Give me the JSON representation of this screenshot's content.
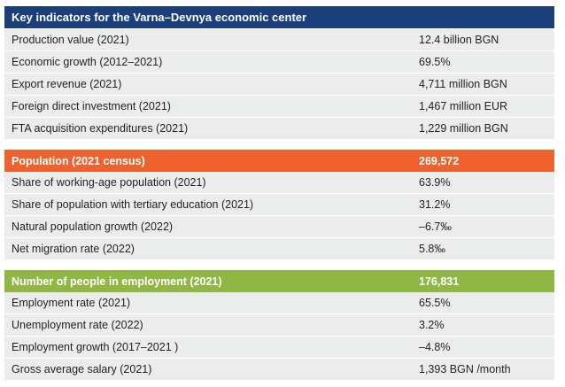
{
  "title": "Key indicators for the Varna–Devnya economic center",
  "colors": {
    "title_bg": "#1b3f7a",
    "population_bg": "#f0622d",
    "employment_bg": "#8fb743",
    "row_bg": "#ebecec"
  },
  "economy": {
    "rows": [
      {
        "label": "Production value (2021)",
        "value": "12.4 billion BGN"
      },
      {
        "label": "Economic growth (2012–2021)",
        "value": "69.5%"
      },
      {
        "label": "Export revenue (2021)",
        "value": "4,711 million BGN"
      },
      {
        "label": "Foreign direct investment (2021)",
        "value": "1,467 million EUR"
      },
      {
        "label": "FTA acquisition expenditures (2021)",
        "value": "1,229 million BGN"
      }
    ]
  },
  "population": {
    "header": {
      "label": "Population (2021 census)",
      "value": "269,572"
    },
    "rows": [
      {
        "label": "Share of working-age population (2021)",
        "value": "63.9%"
      },
      {
        "label": "Share of population with tertiary education (2021)",
        "value": "31.2%"
      },
      {
        "label": "Natural population growth (2022)",
        "value": "–6.7‰"
      },
      {
        "label": "Net migration rate (2022)",
        "value": "5.8‰"
      }
    ]
  },
  "employment": {
    "header": {
      "label": "Number of people in employment (2021)",
      "value": "176,831"
    },
    "rows": [
      {
        "label": "Employment rate (2021)",
        "value": "65.5%"
      },
      {
        "label": "Unemployment rate (2022)",
        "value": "3.2%"
      },
      {
        "label": "Employment growth (2017–2021 )",
        "value": "–4.8%"
      },
      {
        "label": "Gross average salary (2021)",
        "value": "1,393 BGN /month"
      }
    ]
  }
}
